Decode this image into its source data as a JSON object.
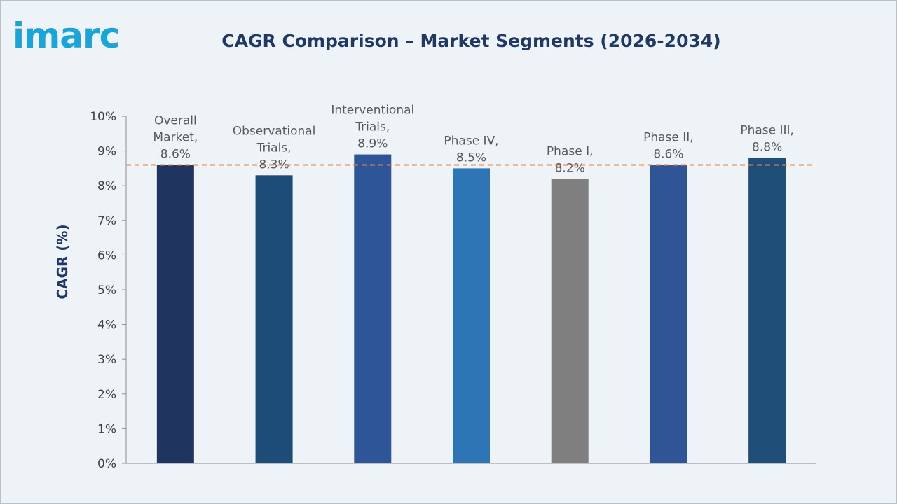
{
  "logo": {
    "text": "imarc"
  },
  "colors": {
    "brand": "#1aa5d8",
    "title": "#1f3864",
    "avg_line": "#e2854c",
    "axis": "#8c8c8c"
  },
  "chart_data": {
    "type": "bar",
    "title": "CAGR Comparison – Market Segments (2026-2034)",
    "ylabel": "CAGR (%)",
    "xlabel": "",
    "ylim": [
      0,
      10
    ],
    "yticks": [
      "0%",
      "1%",
      "2%",
      "3%",
      "4%",
      "5%",
      "6%",
      "7%",
      "8%",
      "9%",
      "10%"
    ],
    "categories": [
      "Overall Market",
      "Observational Trials",
      "Interventional Trials",
      "Phase IV",
      "Phase I",
      "Phase II",
      "Phase III"
    ],
    "values": [
      8.6,
      8.3,
      8.9,
      8.5,
      8.2,
      8.6,
      8.8
    ],
    "data_labels": [
      [
        "Overall",
        "Market,",
        "8.6%"
      ],
      [
        "Observational",
        "Trials,",
        "8.3%"
      ],
      [
        "Interventional",
        "Trials,",
        "8.9%"
      ],
      [
        "Phase IV,",
        "8.5%"
      ],
      [
        "Phase I,",
        "8.2%"
      ],
      [
        "Phase II,",
        "8.6%"
      ],
      [
        "Phase III,",
        "8.8%"
      ]
    ],
    "bar_colors": [
      "#1f3560",
      "#1d4c78",
      "#2e5597",
      "#2e75b6",
      "#7f7f7f",
      "#2f5597",
      "#1f4e79"
    ],
    "reference_line": 8.6,
    "grid": false,
    "legend": "none"
  }
}
